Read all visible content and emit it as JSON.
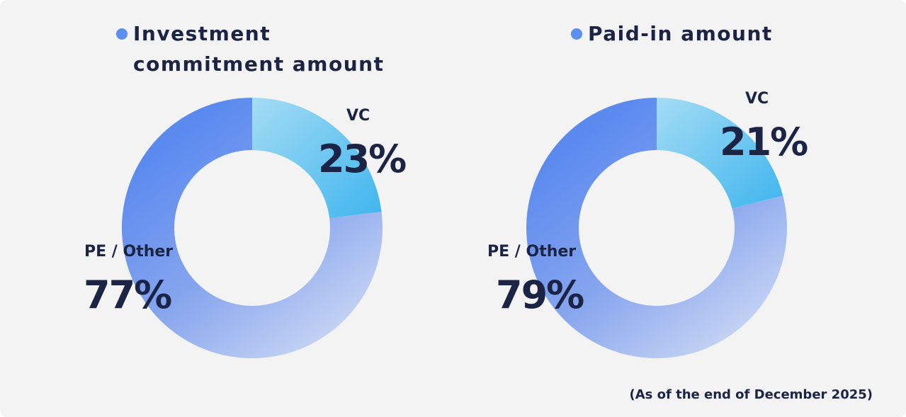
{
  "legend_dot_color": "#5b8ff0",
  "footnote": "(As of the end of December 2025)",
  "chart_data": [
    {
      "type": "pie",
      "title": "Investment commitment amount",
      "title_lines": [
        "Investment",
        "commitment amount"
      ],
      "slices": [
        {
          "label": "VC",
          "value": 23,
          "value_text": "23%",
          "color": "#6cc8f2"
        },
        {
          "label": "PE / Other",
          "value": 77,
          "value_text": "77%",
          "color": "#7e9ff0"
        }
      ]
    },
    {
      "type": "pie",
      "title": "Paid-in amount",
      "title_lines": [
        "Paid-in amount"
      ],
      "slices": [
        {
          "label": "VC",
          "value": 21,
          "value_text": "21%",
          "color": "#6cc8f2"
        },
        {
          "label": "PE / Other",
          "value": 79,
          "value_text": "79%",
          "color": "#7e9ff0"
        }
      ]
    }
  ]
}
